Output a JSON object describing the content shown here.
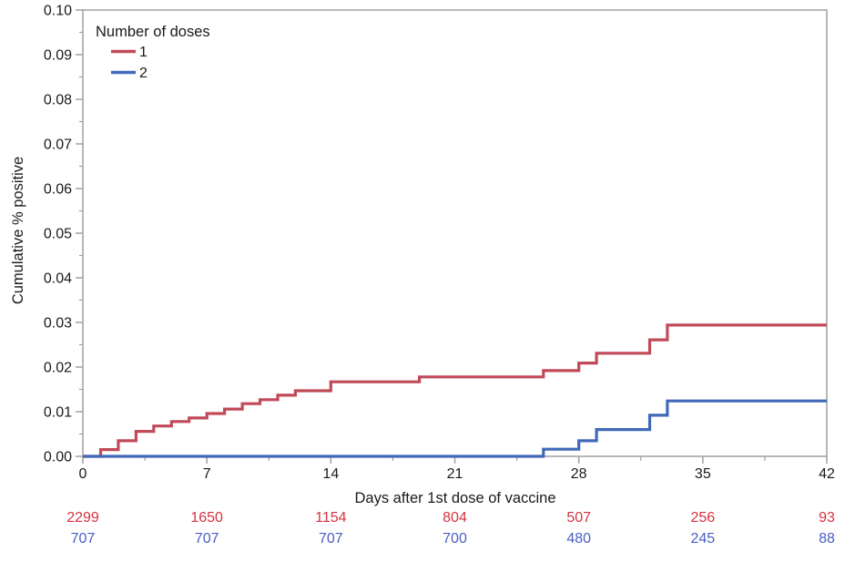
{
  "chart_data": {
    "type": "line",
    "subtype": "step-after",
    "title": "",
    "xlabel": "Days after 1st dose of vaccine",
    "ylabel": "Cumulative % positive",
    "xlim": [
      0,
      42
    ],
    "ylim": [
      0,
      0.1
    ],
    "grid": "off",
    "legend_title": "Number of doses",
    "legend_position": "top-left-inside",
    "axis_color": "#a0a0a0",
    "text_color": "#1a1a1a",
    "x_ticks": [
      {
        "value": 0,
        "label": "0"
      },
      {
        "value": 7,
        "label": "7"
      },
      {
        "value": 14,
        "label": "14"
      },
      {
        "value": 21,
        "label": "21"
      },
      {
        "value": 28,
        "label": "28"
      },
      {
        "value": 35,
        "label": "35"
      },
      {
        "value": 42,
        "label": "42"
      }
    ],
    "x_minor_ticks": [
      3.5,
      10.5,
      17.5,
      24.5,
      31.5,
      38.5
    ],
    "y_ticks": [
      {
        "value": 0.0,
        "label": "0.00"
      },
      {
        "value": 0.01,
        "label": "0.01"
      },
      {
        "value": 0.02,
        "label": "0.02"
      },
      {
        "value": 0.03,
        "label": "0.03"
      },
      {
        "value": 0.04,
        "label": "0.04"
      },
      {
        "value": 0.05,
        "label": "0.05"
      },
      {
        "value": 0.06,
        "label": "0.06"
      },
      {
        "value": 0.07,
        "label": "0.07"
      },
      {
        "value": 0.08,
        "label": "0.08"
      },
      {
        "value": 0.09,
        "label": "0.09"
      },
      {
        "value": 0.1,
        "label": "0.10"
      }
    ],
    "y_minor_ticks": [
      0.005,
      0.015,
      0.025,
      0.035,
      0.045,
      0.055,
      0.065,
      0.075,
      0.085,
      0.095
    ],
    "series": [
      {
        "name": "1",
        "color": "#c14a59",
        "points": [
          [
            0,
            0.0
          ],
          [
            1,
            0.0015
          ],
          [
            2,
            0.0035
          ],
          [
            3,
            0.0056
          ],
          [
            4,
            0.0068
          ],
          [
            5,
            0.0078
          ],
          [
            6,
            0.0086
          ],
          [
            7,
            0.0096
          ],
          [
            8,
            0.0106
          ],
          [
            9,
            0.0118
          ],
          [
            10,
            0.0127
          ],
          [
            11,
            0.0137
          ],
          [
            12,
            0.0147
          ],
          [
            14,
            0.0167
          ],
          [
            19,
            0.0178
          ],
          [
            26,
            0.0192
          ],
          [
            28,
            0.0209
          ],
          [
            29,
            0.0231
          ],
          [
            32,
            0.0261
          ],
          [
            33,
            0.0294
          ],
          [
            42,
            0.0294
          ]
        ]
      },
      {
        "name": "2",
        "color": "#4169b8",
        "points": [
          [
            0,
            0.0
          ],
          [
            26,
            0.0016
          ],
          [
            28,
            0.0035
          ],
          [
            29,
            0.006
          ],
          [
            32,
            0.0092
          ],
          [
            33,
            0.0124
          ],
          [
            42,
            0.0124
          ]
        ]
      }
    ],
    "at_risk_table": {
      "x_positions": [
        0,
        7,
        14,
        21,
        28,
        35,
        42
      ],
      "rows": [
        {
          "dose": "1",
          "color": "#d5333f",
          "values": [
            "2299",
            "1650",
            "1154",
            "804",
            "507",
            "256",
            "93"
          ]
        },
        {
          "dose": "2",
          "color": "#4a5ec4",
          "values": [
            "707",
            "707",
            "707",
            "700",
            "480",
            "245",
            "88"
          ]
        }
      ]
    }
  }
}
